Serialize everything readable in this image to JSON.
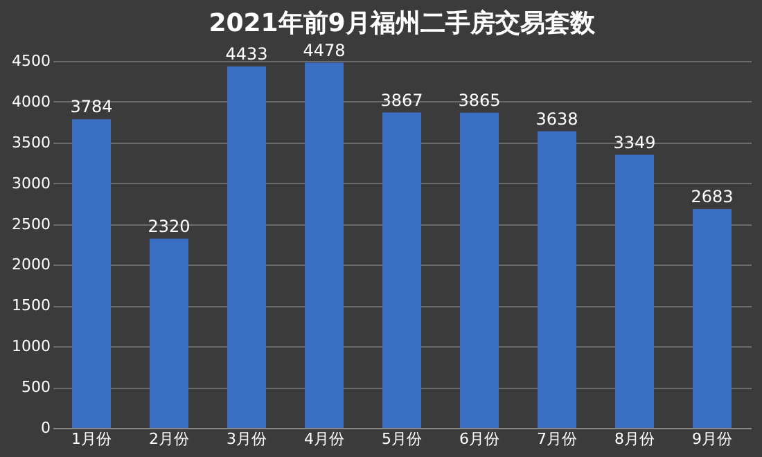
{
  "chart_data": {
    "type": "bar",
    "title": "2021年前9月福州二手房交易套数",
    "categories": [
      "1月份",
      "2月份",
      "3月份",
      "4月份",
      "5月份",
      "6月份",
      "7月份",
      "8月份",
      "9月份"
    ],
    "values": [
      3784,
      2320,
      4433,
      4478,
      3867,
      3865,
      3638,
      3349,
      2683
    ],
    "color": "#3a6fc4",
    "ylim": [
      0,
      4500
    ],
    "yticks": [
      0,
      500,
      1000,
      1500,
      2000,
      2500,
      3000,
      3500,
      4000,
      4500
    ],
    "grid": "y",
    "data_labels": true
  }
}
